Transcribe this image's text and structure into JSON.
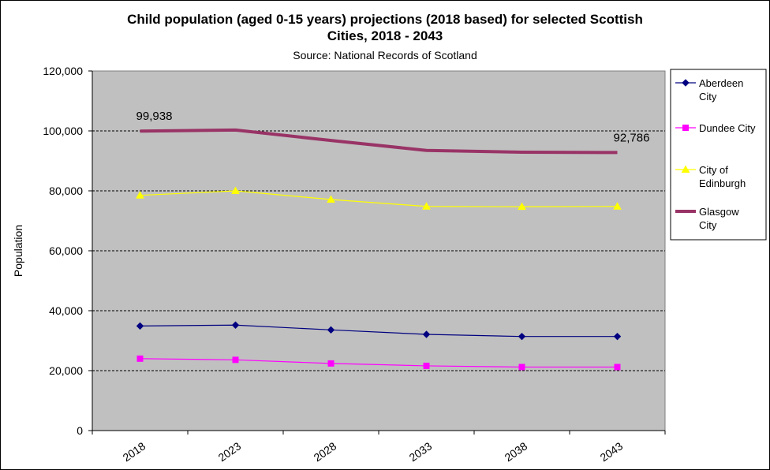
{
  "chart_data": {
    "type": "line",
    "title_line1": "Child population (aged 0-15 years) projections (2018 based) for selected Scottish",
    "title_line2": "Cities, 2018 - 2043",
    "subtitle": "Source: National Records of Scotland",
    "ylabel": "Population",
    "xlabel": "",
    "categories": [
      "2018",
      "2023",
      "2028",
      "2033",
      "2038",
      "2043"
    ],
    "ylim": [
      0,
      120000
    ],
    "yticks": [
      0,
      20000,
      40000,
      60000,
      80000,
      100000,
      120000
    ],
    "ytick_labels": [
      "0",
      "20,000",
      "40,000",
      "60,000",
      "80,000",
      "100,000",
      "120,000"
    ],
    "grid": "horizontal dashed",
    "plot_background": "#c0c0c0",
    "legend_position": "right",
    "series": [
      {
        "name": "Aberdeen City",
        "legend_lines": [
          "Aberdeen",
          "City"
        ],
        "color": "#000080",
        "marker": "diamond",
        "width": 1.2,
        "values": [
          34900,
          35200,
          33600,
          32100,
          31400,
          31400
        ]
      },
      {
        "name": "Dundee City",
        "legend_lines": [
          "Dundee City"
        ],
        "color": "#ff00ff",
        "marker": "square",
        "width": 1.2,
        "values": [
          24000,
          23600,
          22400,
          21600,
          21200,
          21200
        ]
      },
      {
        "name": "City of Edinburgh",
        "legend_lines": [
          "City of",
          "Edinburgh"
        ],
        "color": "#ffff00",
        "marker": "triangle",
        "width": 1.2,
        "values": [
          78500,
          80000,
          77100,
          74800,
          74700,
          74800
        ]
      },
      {
        "name": "Glasgow City",
        "legend_lines": [
          "Glasgow",
          "City"
        ],
        "color": "#993366",
        "marker": "none",
        "width": 4,
        "values": [
          99938,
          100300,
          96800,
          93500,
          92900,
          92786
        ]
      }
    ],
    "annotations": [
      {
        "text": "99,938",
        "series": "Glasgow City",
        "category": "2018"
      },
      {
        "text": "92,786",
        "series": "Glasgow City",
        "category": "2043"
      }
    ]
  }
}
